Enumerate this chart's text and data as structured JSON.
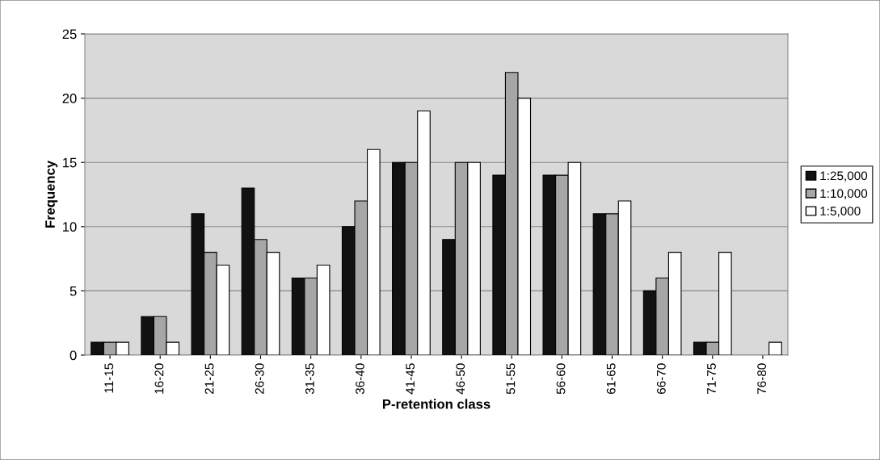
{
  "chart_data": {
    "type": "bar",
    "xlabel": "P-retention class",
    "ylabel": "Frequency",
    "categories": [
      "11-15",
      "16-20",
      "21-25",
      "26-30",
      "31-35",
      "36-40",
      "41-45",
      "46-50",
      "51-55",
      "56-60",
      "61-65",
      "66-70",
      "71-75",
      "76-80"
    ],
    "series": [
      {
        "name": "1:25,000",
        "color": "#111111",
        "values": [
          1,
          3,
          11,
          13,
          6,
          10,
          15,
          9,
          14,
          14,
          11,
          5,
          1,
          0
        ]
      },
      {
        "name": "1:10,000",
        "color": "#a6a6a6",
        "values": [
          1,
          3,
          8,
          9,
          6,
          12,
          15,
          15,
          22,
          14,
          11,
          6,
          1,
          0
        ]
      },
      {
        "name": "1:5,000",
        "color": "#ffffff",
        "values": [
          1,
          1,
          7,
          8,
          7,
          16,
          19,
          15,
          20,
          15,
          12,
          8,
          8,
          1
        ]
      }
    ],
    "ylim": [
      0,
      25
    ],
    "yticks": [
      0,
      5,
      10,
      15,
      20,
      25
    ],
    "grid": "y",
    "legend": "right"
  }
}
